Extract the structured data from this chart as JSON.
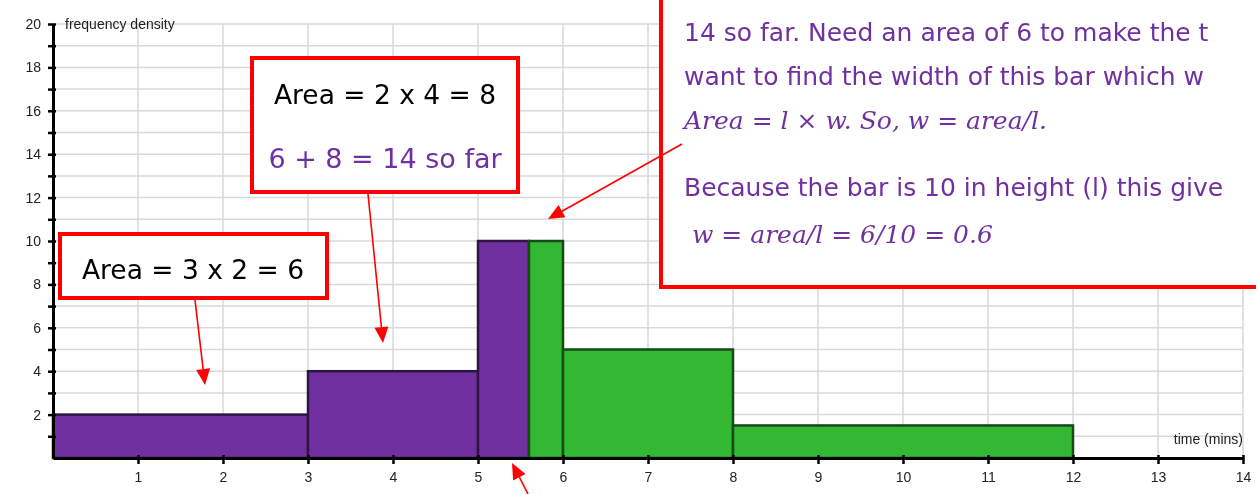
{
  "chart_data": {
    "type": "histogram",
    "xlabel": "time (mins)",
    "ylabel": "frequency density",
    "bins": [
      0,
      3,
      5,
      5.6,
      6,
      8,
      12
    ],
    "values": [
      2,
      4,
      10,
      10,
      5,
      1.5
    ],
    "colors": [
      "#7030a0",
      "#7030a0",
      "#7030a0",
      "#33b833",
      "#33b833",
      "#33b833"
    ],
    "xlim": [
      0,
      14
    ],
    "xticks": [
      1,
      2,
      3,
      4,
      5,
      6,
      7,
      8,
      9,
      10,
      11,
      12,
      13,
      14
    ],
    "ylim": [
      0,
      20
    ],
    "yticks": [
      {
        "value": 1,
        "label": null
      },
      2,
      {
        "value": 3,
        "label": null
      },
      4,
      {
        "value": 5,
        "label": null
      },
      6,
      {
        "value": 7,
        "label": null
      },
      8,
      {
        "value": 9,
        "label": null
      },
      10,
      {
        "value": 11,
        "label": null
      },
      12,
      {
        "value": 13,
        "label": null
      },
      14,
      {
        "value": 15,
        "label": null
      },
      16,
      {
        "value": 17,
        "label": null
      },
      18,
      {
        "value": 19,
        "label": null
      },
      20
    ],
    "grid": true,
    "annotations": [
      "Area = 3 x 2 = 6",
      "Area = 2 x 4 = 8",
      "6 + 8 = 14 so far",
      "14 so far. Need an area of 6 to make the t",
      "want to find the width of this bar which w",
      "Area = l × w. So, w = area/l.",
      "Because the bar is 10 in height (l) this give",
      "w = area/l = 6/10 = 0.6"
    ]
  }
}
